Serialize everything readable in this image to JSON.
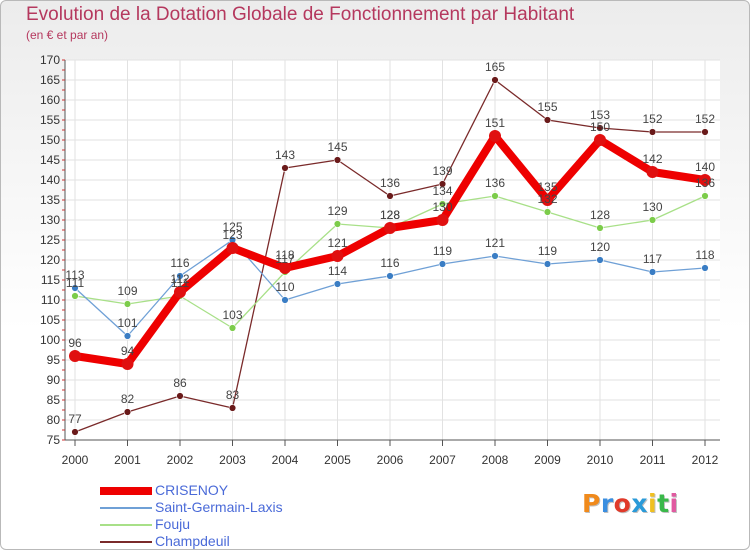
{
  "title": "Evolution de la Dotation Globale de Fonctionnement par Habitant",
  "subtitle": "(en € et par an)",
  "logo": {
    "text": "Proxiti",
    "letters": [
      "P",
      "r",
      "o",
      "x",
      "i",
      "t",
      "i"
    ],
    "colors": [
      "#f08a1c",
      "#3a8ee0",
      "#e03a2a",
      "#2a9ad8",
      "#f0c020",
      "#3ab84a",
      "#e05aa0"
    ]
  },
  "chart_data": {
    "type": "line",
    "x": [
      "2000",
      "2001",
      "2002",
      "2003",
      "2004",
      "2005",
      "2006",
      "2007",
      "2008",
      "2009",
      "2010",
      "2011",
      "2012"
    ],
    "ylim": [
      75,
      170
    ],
    "yticks": [
      75,
      80,
      85,
      90,
      95,
      100,
      105,
      110,
      115,
      120,
      125,
      130,
      135,
      140,
      145,
      150,
      155,
      160,
      165,
      170
    ],
    "grid": true,
    "legend_position": "bottom-left",
    "series": [
      {
        "name": "CRISENOY",
        "values": [
          96,
          94,
          112,
          123,
          118,
          121,
          128,
          130,
          151,
          135,
          150,
          142,
          140
        ],
        "color": "#ee0000",
        "marker": "#e01010",
        "stroke": 8,
        "radius": 6
      },
      {
        "name": "Saint-Germain-Laxis",
        "values": [
          113,
          101,
          116,
          125,
          110,
          114,
          116,
          119,
          121,
          119,
          120,
          117,
          118
        ],
        "color": "#6fa0d6",
        "marker": "#3a7dc4",
        "stroke": 1.3,
        "radius": 3.4
      },
      {
        "name": "Fouju",
        "values": [
          111,
          109,
          111,
          103,
          117,
          129,
          128,
          134,
          136,
          132,
          128,
          130,
          136
        ],
        "color": "#a8e088",
        "marker": "#7ccc4a",
        "stroke": 1.3,
        "radius": 3.4
      },
      {
        "name": "Champdeuil",
        "values": [
          77,
          82,
          86,
          83,
          143,
          145,
          136,
          139,
          165,
          155,
          153,
          152,
          152
        ],
        "color": "#7a2a2a",
        "marker": "#6a1a1a",
        "stroke": 1.3,
        "radius": 3.4
      }
    ]
  }
}
